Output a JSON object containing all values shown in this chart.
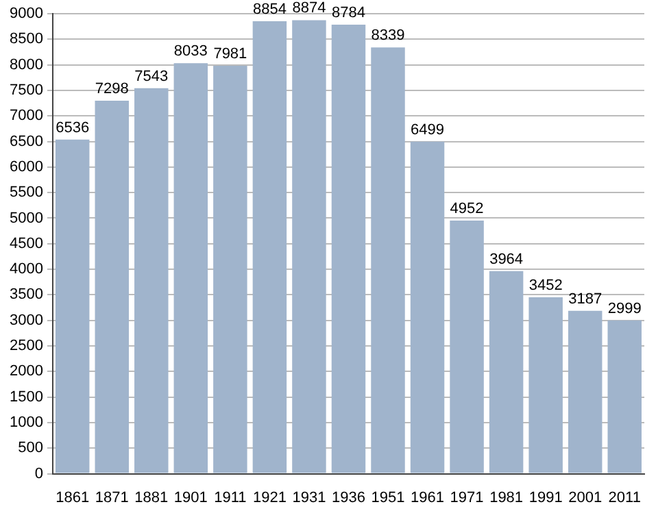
{
  "chart_data": {
    "type": "bar",
    "categories": [
      "1861",
      "1871",
      "1881",
      "1901",
      "1911",
      "1921",
      "1931",
      "1936",
      "1951",
      "1961",
      "1971",
      "1981",
      "1991",
      "2001",
      "2011"
    ],
    "values": [
      6536,
      7298,
      7543,
      8033,
      7981,
      8854,
      8874,
      8784,
      8339,
      6499,
      4952,
      3964,
      3452,
      3187,
      2999
    ],
    "color": "#a0b4cc",
    "ylim": [
      0,
      9000
    ],
    "yticks": [
      0,
      500,
      1000,
      1500,
      2000,
      2500,
      3000,
      3500,
      4000,
      4500,
      5000,
      5500,
      6000,
      6500,
      7000,
      7500,
      8000,
      8500,
      9000
    ],
    "grid": "y",
    "data_labels": true
  }
}
